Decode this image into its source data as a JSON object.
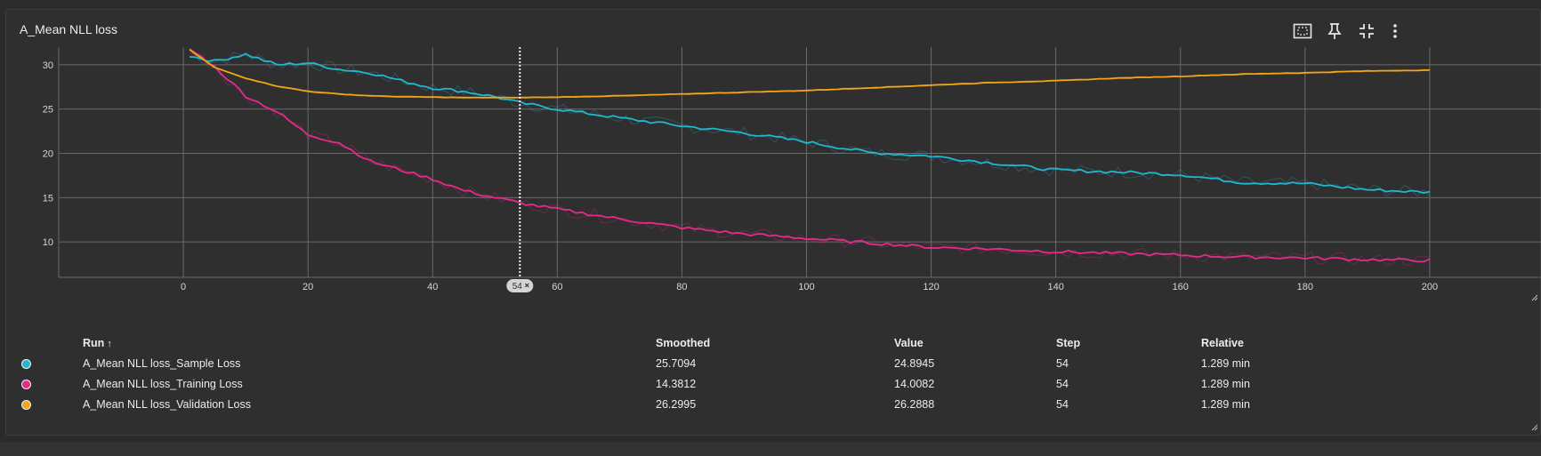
{
  "card": {
    "title": "A_Mean NLL loss"
  },
  "toolbar": {
    "icons": [
      "fit-to-data-icon",
      "pin-icon",
      "collapse-icon",
      "more-vert-icon"
    ]
  },
  "colors": {
    "sample": "#22b7cf",
    "training": "#e52a8a",
    "validation": "#f2a516",
    "grid": "#6a6a6a",
    "background": "#2f2f2f"
  },
  "chart_data": {
    "type": "line",
    "title": "",
    "xlabel": "",
    "ylabel": "",
    "xlim": [
      -20,
      218
    ],
    "ylim": [
      6,
      32
    ],
    "x_ticks": [
      0,
      20,
      40,
      60,
      80,
      100,
      120,
      140,
      160,
      180,
      200
    ],
    "y_ticks": [
      10,
      15,
      20,
      25,
      30
    ],
    "grid": true,
    "cursor_step": 54,
    "cursor_label": "54",
    "x": [
      1,
      5,
      10,
      15,
      20,
      25,
      30,
      35,
      40,
      45,
      50,
      54,
      60,
      70,
      80,
      90,
      100,
      110,
      120,
      130,
      140,
      150,
      160,
      170,
      180,
      190,
      200
    ],
    "series": [
      {
        "name": "A_Mean NLL loss_Sample Loss",
        "color": "#22b7cf",
        "values": [
          31.0,
          30.4,
          31.2,
          30.0,
          30.2,
          29.5,
          29.1,
          28.2,
          27.4,
          27.0,
          26.4,
          25.7,
          25.0,
          24.0,
          23.1,
          22.3,
          21.3,
          20.1,
          19.7,
          18.9,
          18.1,
          17.9,
          17.6,
          16.7,
          16.6,
          15.9,
          15.6
        ]
      },
      {
        "name": "A_Mean NLL loss_Training Loss",
        "color": "#e52a8a",
        "values": [
          31.8,
          29.8,
          26.5,
          24.7,
          22.1,
          21.2,
          19.1,
          18.1,
          17.1,
          15.8,
          15.0,
          14.4,
          13.7,
          12.6,
          11.6,
          10.9,
          10.4,
          9.9,
          9.4,
          9.2,
          8.9,
          8.7,
          8.5,
          8.3,
          8.2,
          8.0,
          7.9
        ]
      },
      {
        "name": "A_Mean NLL loss_Validation Loss",
        "color": "#f2a516",
        "values": [
          31.7,
          29.7,
          28.5,
          27.6,
          27.0,
          26.7,
          26.5,
          26.4,
          26.35,
          26.3,
          26.3,
          26.3,
          26.35,
          26.5,
          26.7,
          26.9,
          27.1,
          27.4,
          27.7,
          28.0,
          28.2,
          28.5,
          28.7,
          28.95,
          29.1,
          29.3,
          29.4
        ]
      }
    ]
  },
  "table": {
    "headers": {
      "run": "Run",
      "sort_indicator": "↑",
      "smoothed": "Smoothed",
      "value": "Value",
      "step": "Step",
      "relative": "Relative"
    },
    "rows": [
      {
        "run": "A_Mean NLL loss_Sample Loss",
        "color": "#22b7cf",
        "smoothed": "25.7094",
        "value": "24.8945",
        "step": "54",
        "relative": "1.289 min"
      },
      {
        "run": "A_Mean NLL loss_Training Loss",
        "color": "#e52a8a",
        "smoothed": "14.3812",
        "value": "14.0082",
        "step": "54",
        "relative": "1.289 min"
      },
      {
        "run": "A_Mean NLL loss_Validation Loss",
        "color": "#f2a516",
        "smoothed": "26.2995",
        "value": "26.2888",
        "step": "54",
        "relative": "1.289 min"
      }
    ]
  }
}
